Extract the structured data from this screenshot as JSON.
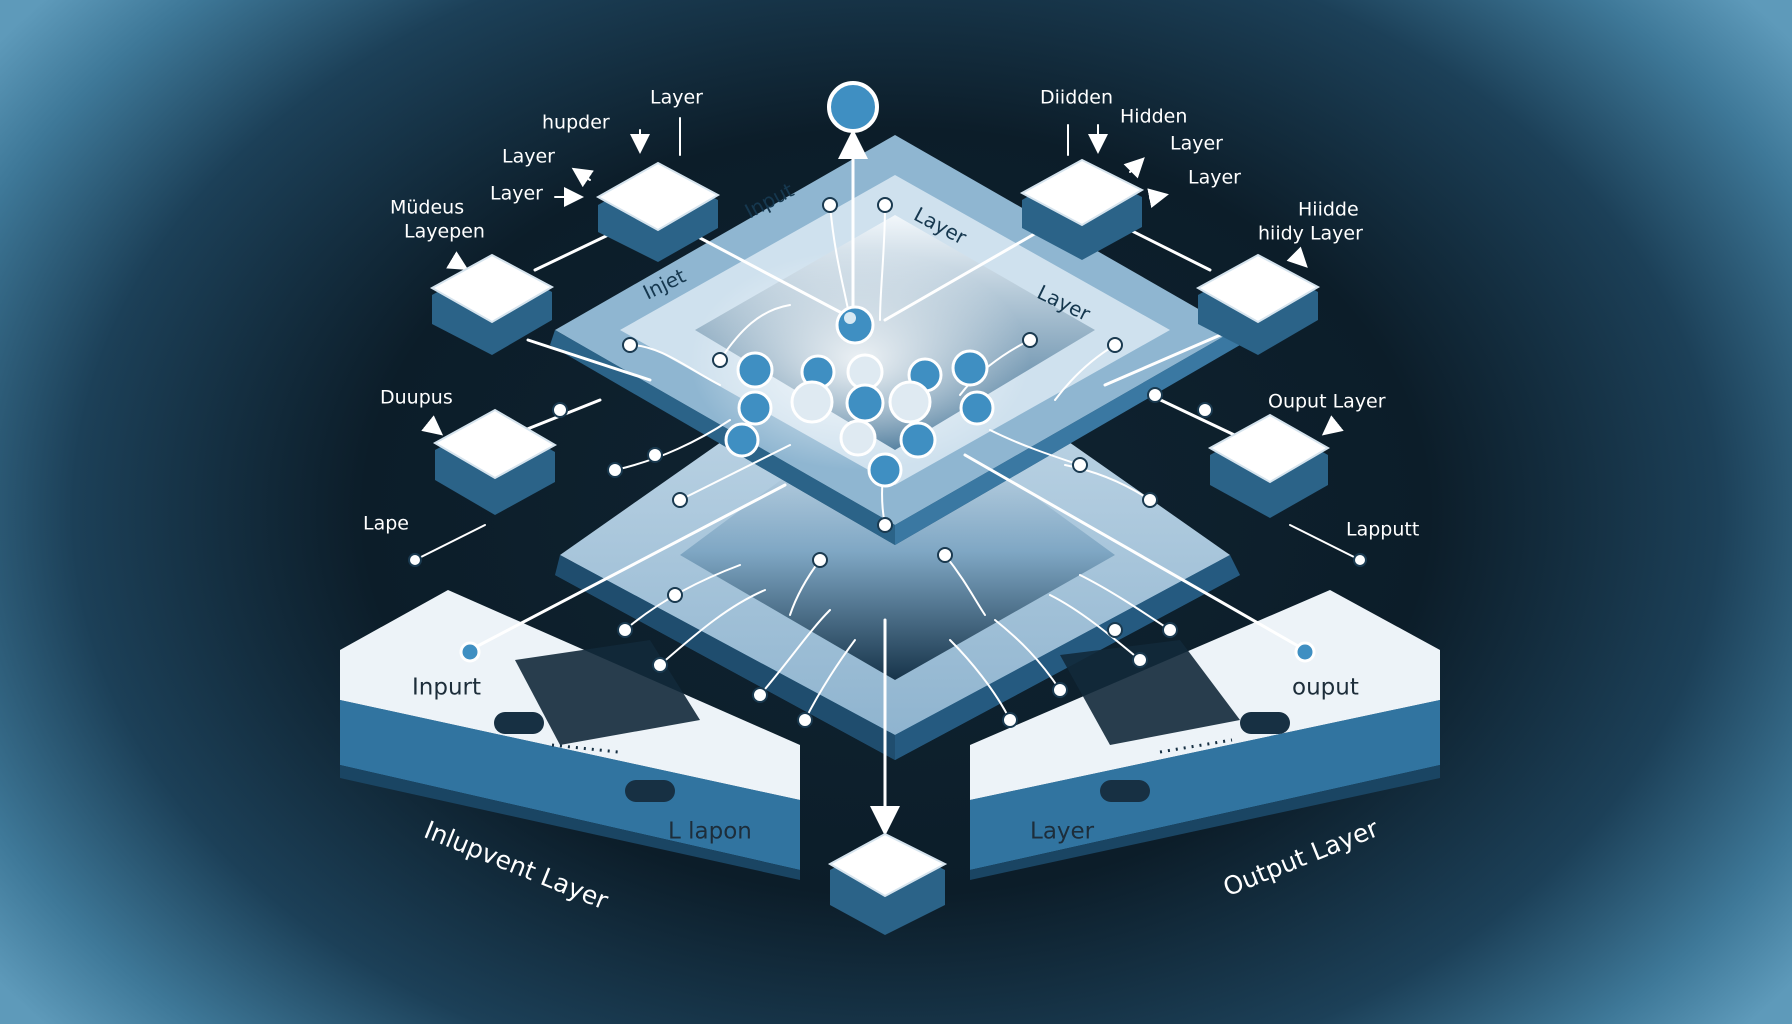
{
  "colors": {
    "accent": "#3f8fc2",
    "panel_light": "#edf3f8",
    "panel_side": "#2f6a92",
    "band": "#aac9df",
    "background_dark": "#0c1d29",
    "background_edge": "#5e9aba"
  },
  "labels": {
    "top_left": [
      "Layer",
      "hupder",
      "Layer",
      "Layer"
    ],
    "left_side_1": [
      "Müdeus",
      "Layepen"
    ],
    "top_right": [
      "Diidden",
      "Hidden",
      "Layer",
      "Layer"
    ],
    "right_side_1": [
      "Hiidde",
      "hiidy Layer"
    ],
    "left_mid": "Duupus",
    "right_mid": "Ouput Layer",
    "left_lower": "Lape",
    "right_lower": "Lapputt",
    "band_top_left": "Input",
    "band_top_right": "Layer",
    "band_mid_left": "Injet",
    "band_mid_right": "Layer",
    "bottom_left_panel_top": "Inpurt",
    "bottom_left_panel_bottom": "L lapon",
    "bottom_right_panel_top": "ouput",
    "bottom_right_panel_bottom": "Layer",
    "bottom_left_caption": "Inlupvent Layer",
    "bottom_right_caption": "Output Layer"
  }
}
